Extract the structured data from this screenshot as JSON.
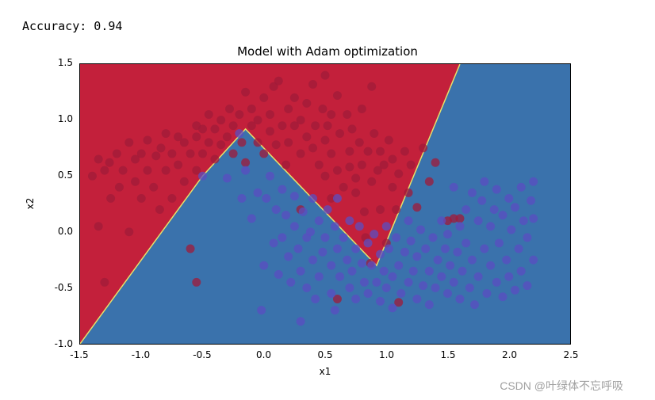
{
  "accuracy_label": "Accuracy: 0.94",
  "watermark": "CSDN @叶绿体不忘呼吸",
  "chart": {
    "type": "scatter-with-decision-regions",
    "title": "Model with Adam optimization",
    "title_fontsize": 15,
    "xlabel": "x1",
    "ylabel": "x2",
    "label_fontsize": 12,
    "tick_fontsize": 12,
    "xlim": [
      -1.5,
      2.5
    ],
    "ylim": [
      -1.0,
      1.5
    ],
    "xticks": [
      -1.5,
      -1.0,
      -0.5,
      0.0,
      0.5,
      1.0,
      1.5,
      2.0,
      2.5
    ],
    "yticks": [
      -1.0,
      -0.5,
      0.0,
      0.5,
      1.0,
      1.5
    ],
    "background_color": "#ffffff",
    "plot_border_color": "#000000",
    "region_colors": {
      "red": "#c3203b",
      "blue": "#3a72ac"
    },
    "region_boundary_color": "#e6e16a",
    "region_boundary_width": 1.5,
    "decision_boundary_polyline": [
      [
        -1.5,
        -1.0
      ],
      [
        -0.5,
        0.5
      ],
      [
        -0.15,
        0.92
      ],
      [
        0.92,
        -0.3
      ],
      [
        1.6,
        1.5
      ]
    ],
    "marker_radius": 5.5,
    "marker_opacity": 0.75,
    "class_colors": {
      "0": "#a01b3a",
      "1": "#5b4dc2"
    },
    "points": {
      "class0": [
        [
          -1.4,
          0.5
        ],
        [
          -1.35,
          0.65
        ],
        [
          -1.35,
          0.05
        ],
        [
          -1.3,
          0.55
        ],
        [
          -1.3,
          -0.45
        ],
        [
          -1.25,
          0.3
        ],
        [
          -1.26,
          0.62
        ],
        [
          -1.2,
          0.7
        ],
        [
          -1.18,
          0.4
        ],
        [
          -1.15,
          0.55
        ],
        [
          -1.1,
          0.0
        ],
        [
          -1.1,
          0.8
        ],
        [
          -1.05,
          0.45
        ],
        [
          -1.05,
          0.65
        ],
        [
          -1.0,
          0.7
        ],
        [
          -1.0,
          0.3
        ],
        [
          -0.95,
          0.55
        ],
        [
          -0.95,
          0.82
        ],
        [
          -0.9,
          0.4
        ],
        [
          -0.88,
          0.68
        ],
        [
          -0.85,
          0.2
        ],
        [
          -0.84,
          0.75
        ],
        [
          -0.8,
          0.55
        ],
        [
          -0.8,
          0.88
        ],
        [
          -0.75,
          0.7
        ],
        [
          -0.75,
          0.3
        ],
        [
          -0.7,
          0.85
        ],
        [
          -0.7,
          0.6
        ],
        [
          -0.65,
          0.45
        ],
        [
          -0.65,
          0.8
        ],
        [
          -0.6,
          -0.15
        ],
        [
          -0.6,
          0.7
        ],
        [
          -0.55,
          0.85
        ],
        [
          -0.55,
          0.95
        ],
        [
          -0.55,
          0.55
        ],
        [
          -0.55,
          -0.45
        ],
        [
          -0.5,
          0.7
        ],
        [
          -0.5,
          0.92
        ],
        [
          -0.45,
          0.8
        ],
        [
          -0.45,
          1.05
        ],
        [
          -0.4,
          0.65
        ],
        [
          -0.4,
          0.92
        ],
        [
          -0.35,
          0.78
        ],
        [
          -0.35,
          1.0
        ],
        [
          -0.3,
          0.85
        ],
        [
          -0.28,
          1.1
        ],
        [
          -0.25,
          0.7
        ],
        [
          -0.25,
          0.95
        ],
        [
          -0.2,
          1.05
        ],
        [
          -0.18,
          0.8
        ],
        [
          -0.15,
          1.25
        ],
        [
          -0.15,
          0.62
        ],
        [
          -0.1,
          0.95
        ],
        [
          -0.1,
          1.1
        ],
        [
          -0.05,
          0.8
        ],
        [
          -0.05,
          1.0
        ],
        [
          0.0,
          1.2
        ],
        [
          0.0,
          0.7
        ],
        [
          0.05,
          0.9
        ],
        [
          0.05,
          1.05
        ],
        [
          0.08,
          1.3
        ],
        [
          0.1,
          0.78
        ],
        [
          0.12,
          1.35
        ],
        [
          0.15,
          0.95
        ],
        [
          0.18,
          0.6
        ],
        [
          0.2,
          1.1
        ],
        [
          0.2,
          0.8
        ],
        [
          0.25,
          0.95
        ],
        [
          0.25,
          1.2
        ],
        [
          0.3,
          0.7
        ],
        [
          0.3,
          1.0
        ],
        [
          0.35,
          0.85
        ],
        [
          0.35,
          1.15
        ],
        [
          0.4,
          1.32
        ],
        [
          0.4,
          0.75
        ],
        [
          0.42,
          0.95
        ],
        [
          0.45,
          0.6
        ],
        [
          0.48,
          1.1
        ],
        [
          0.5,
          1.4
        ],
        [
          0.5,
          0.5
        ],
        [
          0.5,
          0.82
        ],
        [
          0.52,
          0.95
        ],
        [
          0.55,
          1.05
        ],
        [
          0.55,
          0.3
        ],
        [
          0.55,
          0.7
        ],
        [
          0.6,
          1.22
        ],
        [
          0.6,
          0.55
        ],
        [
          0.62,
          0.88
        ],
        [
          0.65,
          0.4
        ],
        [
          0.68,
          1.05
        ],
        [
          0.7,
          0.72
        ],
        [
          0.7,
          0.58
        ],
        [
          0.72,
          0.92
        ],
        [
          0.75,
          0.48
        ],
        [
          0.75,
          0.35
        ],
        [
          0.78,
          0.8
        ],
        [
          0.8,
          1.1
        ],
        [
          0.8,
          0.6
        ],
        [
          0.82,
          0.18
        ],
        [
          0.83,
          -0.05
        ],
        [
          0.85,
          0.72
        ],
        [
          0.87,
          -0.28
        ],
        [
          0.88,
          0.45
        ],
        [
          0.88,
          1.3
        ],
        [
          0.9,
          0.88
        ],
        [
          0.93,
          0.55
        ],
        [
          0.95,
          0.72
        ],
        [
          0.95,
          0.2
        ],
        [
          0.98,
          0.6
        ],
        [
          1.0,
          -0.1
        ],
        [
          1.02,
          0.82
        ],
        [
          1.05,
          0.4
        ],
        [
          1.05,
          0.65
        ],
        [
          1.08,
          0.2
        ],
        [
          1.1,
          -0.63
        ],
        [
          1.1,
          0.52
        ],
        [
          1.15,
          0.72
        ],
        [
          1.18,
          0.35
        ],
        [
          1.2,
          0.6
        ],
        [
          1.25,
          0.22
        ],
        [
          1.3,
          0.75
        ],
        [
          1.35,
          0.45
        ],
        [
          1.4,
          0.62
        ],
        [
          1.5,
          0.1
        ],
        [
          1.55,
          0.12
        ],
        [
          1.6,
          0.12
        ],
        [
          0.6,
          -0.6
        ],
        [
          0.3,
          0.2
        ]
      ],
      "class1": [
        [
          -0.5,
          0.5
        ],
        [
          -0.3,
          0.48
        ],
        [
          -0.2,
          0.88
        ],
        [
          -0.18,
          0.3
        ],
        [
          -0.15,
          0.55
        ],
        [
          -0.1,
          0.12
        ],
        [
          -0.05,
          0.35
        ],
        [
          -0.02,
          -0.7
        ],
        [
          0.0,
          -0.3
        ],
        [
          0.02,
          0.3
        ],
        [
          0.05,
          0.5
        ],
        [
          0.08,
          -0.1
        ],
        [
          0.1,
          0.2
        ],
        [
          0.12,
          -0.38
        ],
        [
          0.15,
          -0.05
        ],
        [
          0.15,
          0.38
        ],
        [
          0.18,
          0.15
        ],
        [
          0.2,
          -0.22
        ],
        [
          0.22,
          -0.45
        ],
        [
          0.25,
          0.05
        ],
        [
          0.25,
          0.32
        ],
        [
          0.28,
          -0.15
        ],
        [
          0.3,
          -0.8
        ],
        [
          0.3,
          -0.35
        ],
        [
          0.32,
          0.18
        ],
        [
          0.35,
          -0.05
        ],
        [
          0.35,
          -0.5
        ],
        [
          0.38,
          0.0
        ],
        [
          0.4,
          0.3
        ],
        [
          0.4,
          -0.25
        ],
        [
          0.42,
          -0.6
        ],
        [
          0.45,
          0.1
        ],
        [
          0.45,
          -0.4
        ],
        [
          0.48,
          -0.18
        ],
        [
          0.5,
          -0.05
        ],
        [
          0.52,
          0.2
        ],
        [
          0.55,
          -0.3
        ],
        [
          0.55,
          -0.55
        ],
        [
          0.58,
          0.05
        ],
        [
          0.58,
          -0.7
        ],
        [
          0.6,
          -0.15
        ],
        [
          0.6,
          0.3
        ],
        [
          0.62,
          -0.4
        ],
        [
          0.65,
          -0.05
        ],
        [
          0.68,
          -0.25
        ],
        [
          0.7,
          -0.5
        ],
        [
          0.7,
          0.1
        ],
        [
          0.72,
          -0.35
        ],
        [
          0.75,
          -0.15
        ],
        [
          0.75,
          -0.6
        ],
        [
          0.78,
          0.05
        ],
        [
          0.8,
          -0.28
        ],
        [
          0.82,
          -0.45
        ],
        [
          0.85,
          -0.1
        ],
        [
          0.85,
          -0.55
        ],
        [
          0.88,
          -0.3
        ],
        [
          0.9,
          -0.02
        ],
        [
          0.92,
          -0.45
        ],
        [
          0.95,
          -0.2
        ],
        [
          0.95,
          -0.62
        ],
        [
          0.98,
          -0.35
        ],
        [
          1.0,
          0.05
        ],
        [
          1.0,
          -0.5
        ],
        [
          1.02,
          -0.15
        ],
        [
          1.05,
          -0.4
        ],
        [
          1.05,
          -0.68
        ],
        [
          1.08,
          -0.05
        ],
        [
          1.1,
          -0.3
        ],
        [
          1.12,
          -0.55
        ],
        [
          1.15,
          -0.18
        ],
        [
          1.18,
          -0.45
        ],
        [
          1.18,
          0.1
        ],
        [
          1.2,
          -0.08
        ],
        [
          1.22,
          -0.35
        ],
        [
          1.25,
          -0.6
        ],
        [
          1.25,
          -0.22
        ],
        [
          1.28,
          0.02
        ],
        [
          1.3,
          -0.48
        ],
        [
          1.32,
          -0.15
        ],
        [
          1.35,
          -0.35
        ],
        [
          1.35,
          -0.65
        ],
        [
          1.38,
          -0.05
        ],
        [
          1.4,
          -0.5
        ],
        [
          1.42,
          -0.25
        ],
        [
          1.45,
          0.1
        ],
        [
          1.45,
          -0.4
        ],
        [
          1.48,
          -0.15
        ],
        [
          1.5,
          -0.55
        ],
        [
          1.5,
          -0.02
        ],
        [
          1.52,
          -0.3
        ],
        [
          1.55,
          0.4
        ],
        [
          1.55,
          -0.45
        ],
        [
          1.58,
          -0.18
        ],
        [
          1.6,
          -0.6
        ],
        [
          1.6,
          0.05
        ],
        [
          1.62,
          -0.35
        ],
        [
          1.65,
          0.2
        ],
        [
          1.65,
          -0.1
        ],
        [
          1.68,
          -0.5
        ],
        [
          1.7,
          0.35
        ],
        [
          1.7,
          -0.25
        ],
        [
          1.72,
          -0.65
        ],
        [
          1.75,
          0.1
        ],
        [
          1.75,
          -0.4
        ],
        [
          1.78,
          0.28
        ],
        [
          1.8,
          -0.15
        ],
        [
          1.8,
          0.45
        ],
        [
          1.82,
          -0.55
        ],
        [
          1.85,
          0.05
        ],
        [
          1.85,
          -0.3
        ],
        [
          1.88,
          0.2
        ],
        [
          1.9,
          -0.45
        ],
        [
          1.9,
          0.38
        ],
        [
          1.92,
          -0.1
        ],
        [
          1.95,
          -0.58
        ],
        [
          1.95,
          0.15
        ],
        [
          1.98,
          -0.25
        ],
        [
          2.0,
          0.3
        ],
        [
          2.0,
          -0.4
        ],
        [
          2.02,
          0.02
        ],
        [
          2.05,
          -0.52
        ],
        [
          2.05,
          0.22
        ],
        [
          2.08,
          -0.15
        ],
        [
          2.1,
          -0.35
        ],
        [
          2.1,
          0.4
        ],
        [
          2.12,
          0.1
        ],
        [
          2.15,
          -0.48
        ],
        [
          2.15,
          -0.05
        ],
        [
          2.18,
          0.28
        ],
        [
          2.2,
          -0.25
        ],
        [
          2.2,
          0.12
        ],
        [
          2.2,
          0.45
        ]
      ]
    }
  }
}
